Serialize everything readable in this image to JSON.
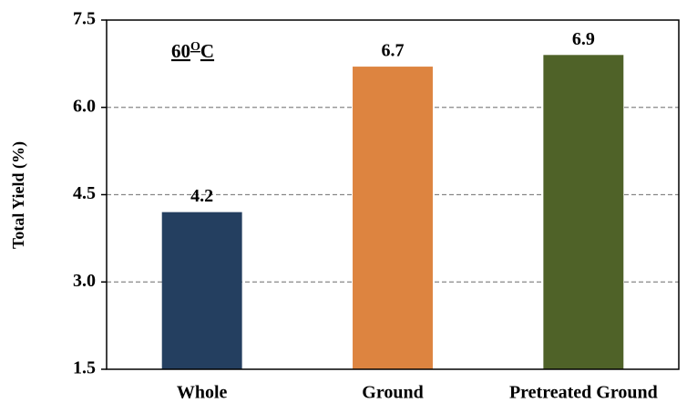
{
  "chart_data": {
    "type": "bar",
    "y_axis_label": "Total Yield (%)",
    "annotation": [
      "60",
      "O",
      "C"
    ],
    "categories": [
      "Whole",
      "Ground",
      "Pretreated Ground"
    ],
    "values": [
      4.2,
      6.7,
      6.9
    ],
    "colors": [
      "#243f60",
      "#dd8440",
      "#4f6228"
    ],
    "ylim": [
      1.5,
      7.5
    ],
    "yticks": [
      {
        "value": 1.5,
        "label": "1.5"
      },
      {
        "value": 3.0,
        "label": "3.0"
      },
      {
        "value": 4.5,
        "label": "4.5"
      },
      {
        "value": 6.0,
        "label": "6.0"
      },
      {
        "value": 7.5,
        "label": "7.5"
      }
    ],
    "grid": true
  }
}
